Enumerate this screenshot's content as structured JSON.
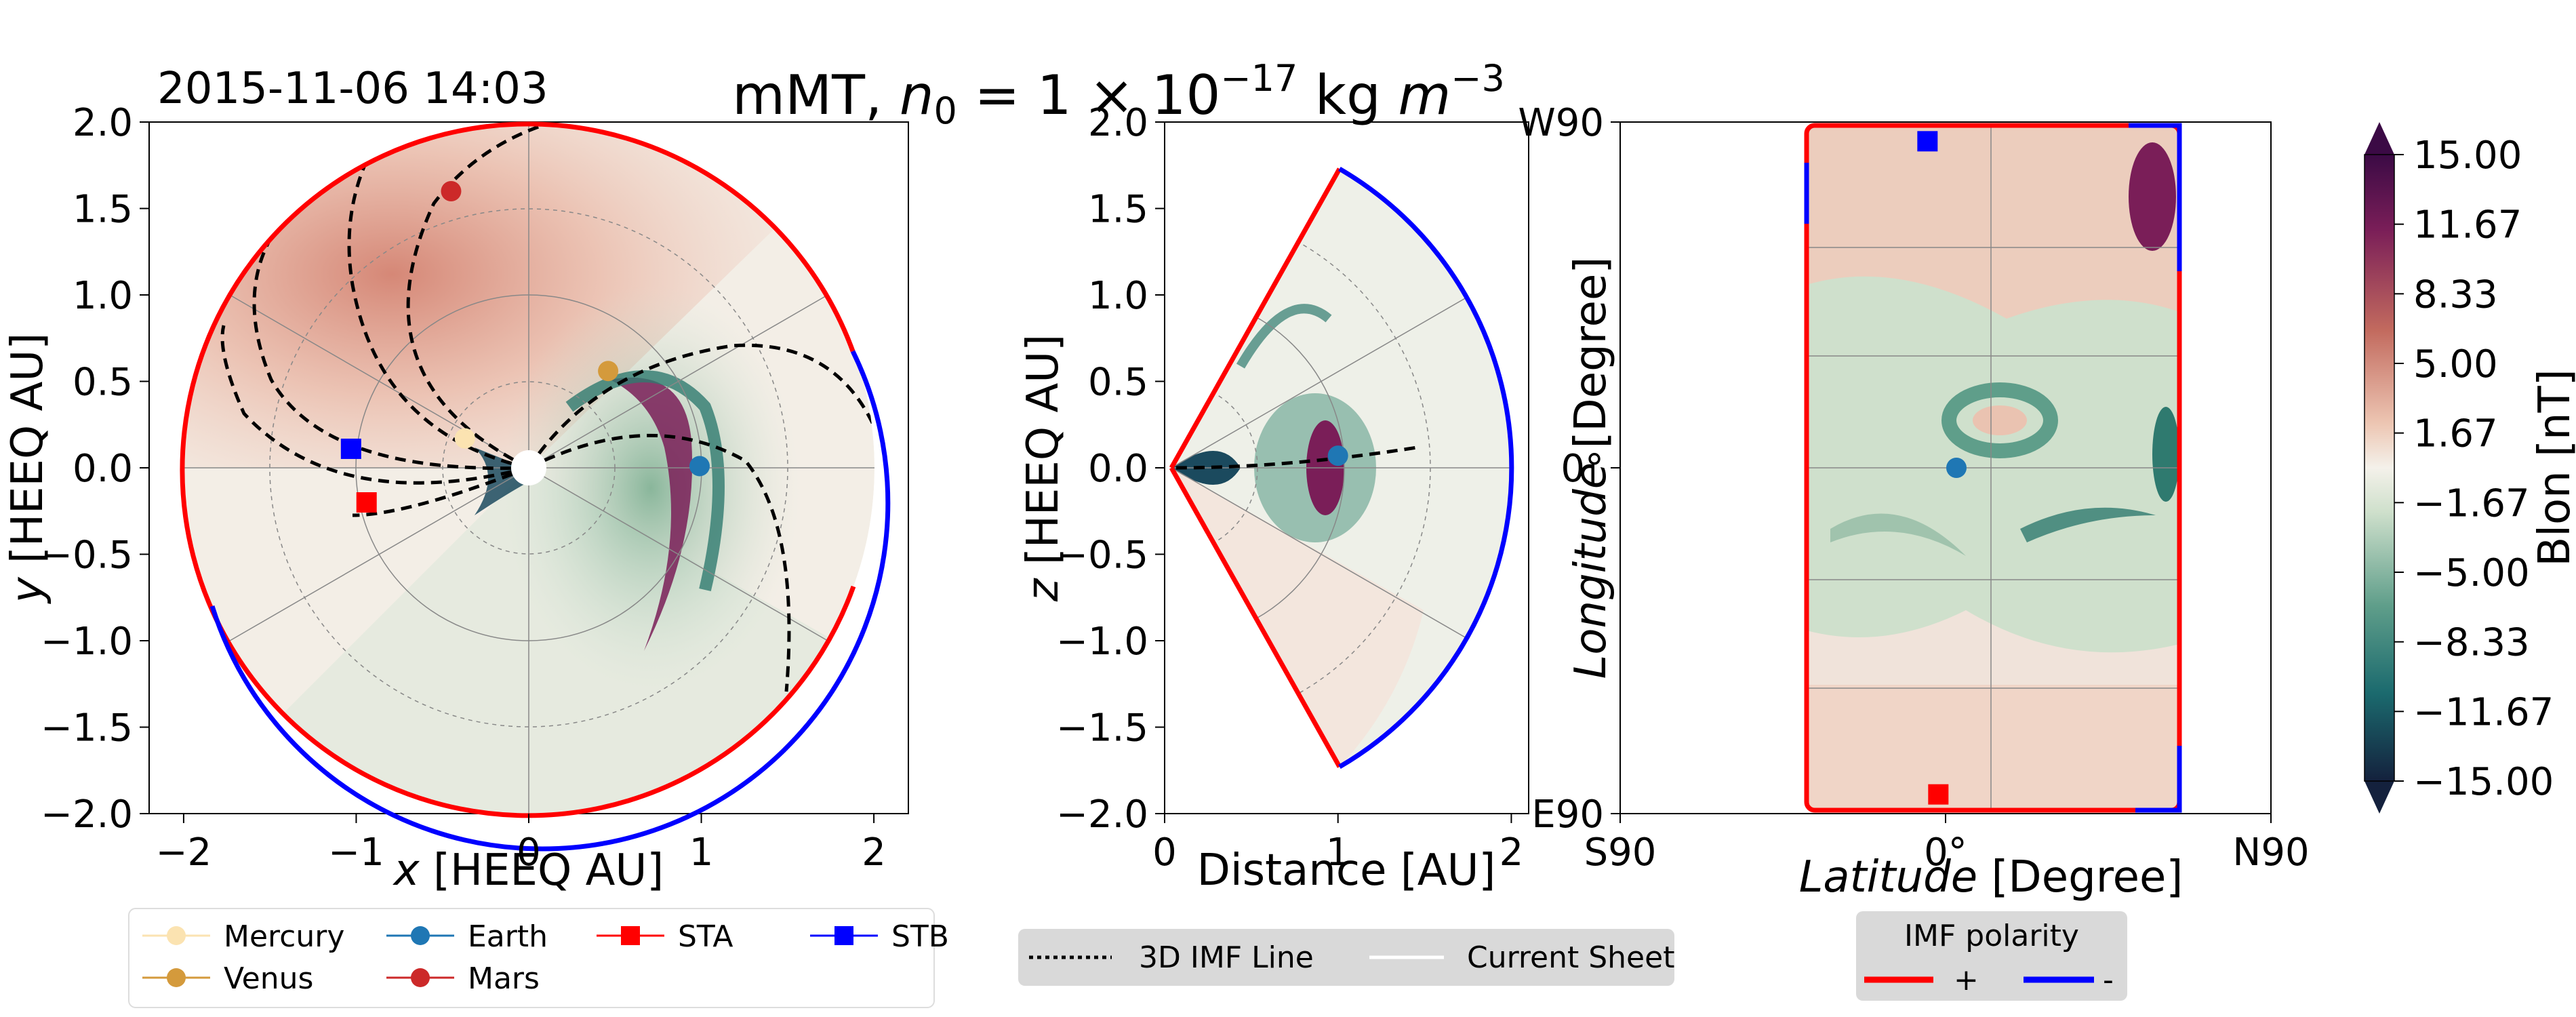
{
  "title": {
    "prefix": "mMT,  ",
    "var": "n",
    "sub": "0",
    "mid": " = 1 × 10",
    "exp": "−17",
    "unit": " kg ",
    "unit_var": "m",
    "unit_exp": "−3"
  },
  "timestamp": "2015-11-06 14:03",
  "colors": {
    "positive_polarity": "#ff0000",
    "negative_polarity": "#0000ff",
    "mercury": "#fbe3b1",
    "venus": "#d49a3c",
    "earth": "#1f77b4",
    "mars": "#cc2929",
    "sta": "#ff0000",
    "stb": "#0000ff",
    "cmap_high": "#3b0a45",
    "cmap_mid": "#f4f1ea",
    "cmap_low": "#14213d"
  },
  "chart_data": [
    {
      "type": "scatter",
      "panel": "equatorial-plane",
      "xlabel_var": "x",
      "xlabel_unit": " [HEEQ AU]",
      "ylabel_var": "y",
      "ylabel_unit": " [HEEQ AU]",
      "xlim": [
        -2.2,
        2.2
      ],
      "ylim": [
        -2.0,
        2.0
      ],
      "xticks": [
        -2,
        -1,
        0,
        1,
        2
      ],
      "xtick_labels": [
        "−2",
        "−1",
        "0",
        "1",
        "2"
      ],
      "yticks": [
        -2.0,
        -1.5,
        -1.0,
        -0.5,
        0.0,
        0.5,
        1.0,
        1.5,
        2.0
      ],
      "ytick_labels": [
        "−2.0",
        "−1.5",
        "−1.0",
        "−0.5",
        "0.0",
        "0.5",
        "1.0",
        "1.5",
        "2.0"
      ],
      "objects": [
        {
          "name": "Mercury",
          "x": -0.37,
          "y": 0.17,
          "marker": "circle",
          "color": "#fbe3b1"
        },
        {
          "name": "Venus",
          "x": 0.46,
          "y": 0.56,
          "marker": "circle",
          "color": "#d49a3c"
        },
        {
          "name": "Earth",
          "x": 0.99,
          "y": 0.01,
          "marker": "circle",
          "color": "#1f77b4"
        },
        {
          "name": "Mars",
          "x": -0.45,
          "y": 1.6,
          "marker": "circle",
          "color": "#cc2929"
        },
        {
          "name": "STA",
          "x": -0.94,
          "y": -0.2,
          "marker": "square",
          "color": "#ff0000"
        },
        {
          "name": "STB",
          "x": -1.03,
          "y": 0.11,
          "marker": "square",
          "color": "#0000ff"
        }
      ],
      "boundary_polarity": [
        {
          "polarity": "+",
          "from_deg": 20,
          "to_deg": 210
        },
        {
          "polarity": "-",
          "from_deg": 210,
          "to_deg": 380
        }
      ]
    },
    {
      "type": "scatter",
      "panel": "meridional-plane",
      "xlabel": "Distance [AU]",
      "ylabel_var": "z",
      "ylabel_unit": " [HEEQ AU]",
      "xlim": [
        0,
        2.1
      ],
      "ylim": [
        -2.0,
        2.0
      ],
      "xticks": [
        0,
        1,
        2
      ],
      "xtick_labels": [
        "0",
        "1",
        "2"
      ],
      "yticks": [
        -2.0,
        -1.5,
        -1.0,
        -0.5,
        0.0,
        0.5,
        1.0,
        1.5,
        2.0
      ],
      "ytick_labels": [
        "−2.0",
        "−1.5",
        "−1.0",
        "−0.5",
        "0.0",
        "0.5",
        "1.0",
        "1.5",
        "2.0"
      ],
      "objects": [
        {
          "name": "Earth",
          "x": 1.0,
          "y": 0.07,
          "marker": "circle",
          "color": "#1f77b4"
        }
      ]
    },
    {
      "type": "heatmap",
      "panel": "latitude-longitude-map",
      "xlabel_var": "Latitude",
      "xlabel_unit": " [Degree]",
      "ylabel_var": "Longitude",
      "ylabel_unit": " [Degree]",
      "xlim": [
        -90,
        90
      ],
      "ylim": [
        -90,
        90
      ],
      "xtick_labels": [
        "S90",
        "0°",
        "N90"
      ],
      "ytick_labels": [
        "W90",
        "0°",
        "E90"
      ],
      "objects": [
        {
          "name": "STB",
          "lat": -5,
          "lon": 85,
          "marker": "square",
          "color": "#0000ff"
        },
        {
          "name": "Earth",
          "lat": 3,
          "lon": 0,
          "marker": "circle",
          "color": "#1f77b4"
        },
        {
          "name": "STA",
          "lat": -2,
          "lon": -85,
          "marker": "square",
          "color": "#ff0000"
        }
      ]
    },
    {
      "type": "colorbar",
      "label": "Blon  [nT]",
      "range": [
        -15.0,
        15.0
      ],
      "tick_labels": [
        "15.00",
        "11.67",
        "8.33",
        "5.00",
        "1.67",
        "−1.67",
        "−5.00",
        "−8.33",
        "−11.67",
        "−15.00"
      ]
    }
  ],
  "legends": {
    "objects": [
      "Mercury",
      "Venus",
      "Earth",
      "Mars",
      "STA",
      "STB"
    ],
    "lines": {
      "imf_line": "3D IMF Line",
      "current_sheet": "Current Sheet"
    },
    "polarity": {
      "title": "IMF polarity",
      "positive": "+",
      "negative": "-"
    }
  }
}
